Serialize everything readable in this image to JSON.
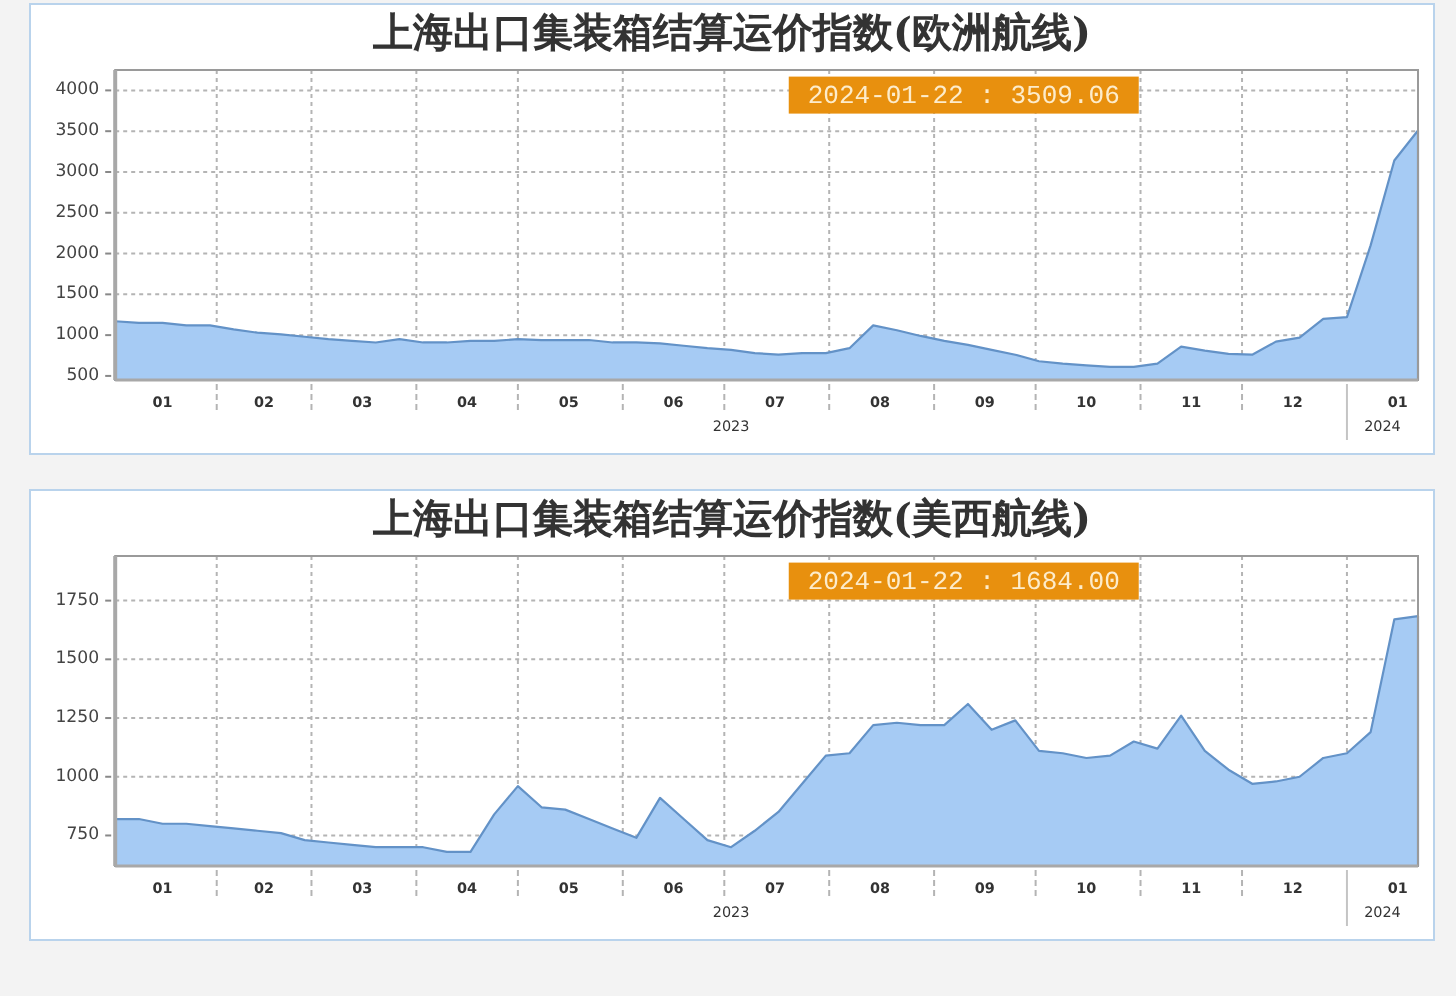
{
  "chart_data": [
    {
      "type": "area",
      "title": "上海出口集装箱结算运价指数(欧洲航线)",
      "x": [
        "2023-01-02",
        "2023-01-09",
        "2023-01-16",
        "2023-01-23",
        "2023-01-30",
        "2023-02-06",
        "2023-02-13",
        "2023-02-20",
        "2023-02-27",
        "2023-03-06",
        "2023-03-13",
        "2023-03-20",
        "2023-03-27",
        "2023-04-03",
        "2023-04-10",
        "2023-04-17",
        "2023-04-24",
        "2023-05-01",
        "2023-05-08",
        "2023-05-15",
        "2023-05-22",
        "2023-05-29",
        "2023-06-05",
        "2023-06-12",
        "2023-06-19",
        "2023-06-26",
        "2023-07-03",
        "2023-07-10",
        "2023-07-17",
        "2023-07-24",
        "2023-07-31",
        "2023-08-07",
        "2023-08-14",
        "2023-08-21",
        "2023-08-28",
        "2023-09-04",
        "2023-09-11",
        "2023-09-18",
        "2023-09-25",
        "2023-10-02",
        "2023-10-09",
        "2023-10-16",
        "2023-10-23",
        "2023-10-30",
        "2023-11-06",
        "2023-11-13",
        "2023-11-20",
        "2023-11-27",
        "2023-12-04",
        "2023-12-11",
        "2023-12-18",
        "2023-12-25",
        "2024-01-01",
        "2024-01-08",
        "2024-01-15",
        "2024-01-22"
      ],
      "values": [
        1170,
        1150,
        1150,
        1120,
        1120,
        1070,
        1030,
        1010,
        980,
        950,
        930,
        910,
        950,
        910,
        910,
        930,
        930,
        950,
        940,
        940,
        940,
        910,
        910,
        900,
        870,
        840,
        820,
        780,
        760,
        780,
        780,
        840,
        1120,
        1060,
        990,
        930,
        880,
        820,
        760,
        680,
        650,
        630,
        610,
        610,
        650,
        860,
        810,
        770,
        760,
        920,
        970,
        1200,
        1220,
        2100,
        3140,
        3509.06
      ],
      "color": "#a6cbf4",
      "xlim": [
        "2023-01-02",
        "2024-01-22"
      ],
      "xticks": [
        {
          "value": "2023-01-16",
          "label": "01"
        },
        {
          "value": "2023-02-01",
          "label": null
        },
        {
          "value": "2023-02-15",
          "label": "02"
        },
        {
          "value": "2023-03-01",
          "label": null
        },
        {
          "value": "2023-03-16",
          "label": "03"
        },
        {
          "value": "2023-04-01",
          "label": null
        },
        {
          "value": "2023-04-16",
          "label": "04"
        },
        {
          "value": "2023-05-01",
          "label": null
        },
        {
          "value": "2023-05-16",
          "label": "05"
        },
        {
          "value": "2023-06-01",
          "label": null
        },
        {
          "value": "2023-06-16",
          "label": "06"
        },
        {
          "value": "2023-07-01",
          "label": null
        },
        {
          "value": "2023-07-16",
          "label": "07"
        },
        {
          "value": "2023-08-01",
          "label": null
        },
        {
          "value": "2023-08-16",
          "label": "08"
        },
        {
          "value": "2023-09-01",
          "label": null
        },
        {
          "value": "2023-09-16",
          "label": "09"
        },
        {
          "value": "2023-10-01",
          "label": null
        },
        {
          "value": "2023-10-16",
          "label": "10"
        },
        {
          "value": "2023-11-01",
          "label": null
        },
        {
          "value": "2023-11-16",
          "label": "11"
        },
        {
          "value": "2023-12-01",
          "label": null
        },
        {
          "value": "2023-12-16",
          "label": "12"
        },
        {
          "value": "2024-01-01",
          "label": null
        },
        {
          "value": "2024-01-16",
          "label": "01"
        }
      ],
      "ylim": [
        450,
        4250
      ],
      "yticks": [
        500,
        1000,
        1500,
        2000,
        2500,
        3000,
        3500,
        4000
      ],
      "grid": true,
      "annotations": [
        "2024-01-22 : 3509.06",
        "2023",
        "2024"
      ]
    },
    {
      "type": "area",
      "title": "上海出口集装箱结算运价指数(美西航线)",
      "x": [
        "2023-01-02",
        "2023-01-09",
        "2023-01-16",
        "2023-01-23",
        "2023-01-30",
        "2023-02-06",
        "2023-02-13",
        "2023-02-20",
        "2023-02-27",
        "2023-03-06",
        "2023-03-13",
        "2023-03-20",
        "2023-03-27",
        "2023-04-03",
        "2023-04-10",
        "2023-04-17",
        "2023-04-24",
        "2023-05-01",
        "2023-05-08",
        "2023-05-15",
        "2023-05-22",
        "2023-05-29",
        "2023-06-05",
        "2023-06-12",
        "2023-06-19",
        "2023-06-26",
        "2023-07-03",
        "2023-07-10",
        "2023-07-17",
        "2023-07-24",
        "2023-07-31",
        "2023-08-07",
        "2023-08-14",
        "2023-08-21",
        "2023-08-28",
        "2023-09-04",
        "2023-09-11",
        "2023-09-18",
        "2023-09-25",
        "2023-10-02",
        "2023-10-09",
        "2023-10-16",
        "2023-10-23",
        "2023-10-30",
        "2023-11-06",
        "2023-11-13",
        "2023-11-20",
        "2023-11-27",
        "2023-12-04",
        "2023-12-11",
        "2023-12-18",
        "2023-12-25",
        "2024-01-01",
        "2024-01-08",
        "2024-01-15",
        "2024-01-22"
      ],
      "values": [
        820,
        820,
        800,
        800,
        790,
        780,
        770,
        760,
        730,
        720,
        710,
        700,
        700,
        700,
        680,
        680,
        840,
        960,
        870,
        860,
        820,
        780,
        740,
        910,
        820,
        730,
        700,
        770,
        850,
        970,
        1090,
        1100,
        1220,
        1230,
        1220,
        1220,
        1310,
        1200,
        1240,
        1110,
        1100,
        1080,
        1090,
        1150,
        1120,
        1260,
        1110,
        1030,
        970,
        980,
        1000,
        1080,
        1100,
        1190,
        1670,
        1684.0
      ],
      "color": "#a6cbf4",
      "xlim": [
        "2023-01-02",
        "2024-01-22"
      ],
      "xticks": [
        {
          "value": "2023-01-16",
          "label": "01"
        },
        {
          "value": "2023-02-01",
          "label": null
        },
        {
          "value": "2023-02-15",
          "label": "02"
        },
        {
          "value": "2023-03-01",
          "label": null
        },
        {
          "value": "2023-03-16",
          "label": "03"
        },
        {
          "value": "2023-04-01",
          "label": null
        },
        {
          "value": "2023-04-16",
          "label": "04"
        },
        {
          "value": "2023-05-01",
          "label": null
        },
        {
          "value": "2023-05-16",
          "label": "05"
        },
        {
          "value": "2023-06-01",
          "label": null
        },
        {
          "value": "2023-06-16",
          "label": "06"
        },
        {
          "value": "2023-07-01",
          "label": null
        },
        {
          "value": "2023-07-16",
          "label": "07"
        },
        {
          "value": "2023-08-01",
          "label": null
        },
        {
          "value": "2023-08-16",
          "label": "08"
        },
        {
          "value": "2023-09-01",
          "label": null
        },
        {
          "value": "2023-09-16",
          "label": "09"
        },
        {
          "value": "2023-10-01",
          "label": null
        },
        {
          "value": "2023-10-16",
          "label": "10"
        },
        {
          "value": "2023-11-01",
          "label": null
        },
        {
          "value": "2023-11-16",
          "label": "11"
        },
        {
          "value": "2023-12-01",
          "label": null
        },
        {
          "value": "2023-12-16",
          "label": "12"
        },
        {
          "value": "2024-01-01",
          "label": null
        },
        {
          "value": "2024-01-16",
          "label": "01"
        }
      ],
      "ylim": [
        620,
        1940
      ],
      "yticks": [
        750,
        1000,
        1250,
        1500,
        1750
      ],
      "grid": true,
      "annotations": [
        "2024-01-22 : 1684.00",
        "2023",
        "2024"
      ]
    }
  ]
}
